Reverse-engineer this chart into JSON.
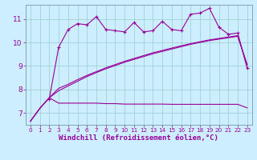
{
  "background_color": "#cceeff",
  "line_color": "#990099",
  "grid_color": "#99cccc",
  "xlabel": "Windchill (Refroidissement éolien,°C)",
  "xlabel_fontsize": 6.5,
  "tick_fontsize": 6.5,
  "xlim": [
    -0.5,
    23.5
  ],
  "ylim": [
    6.5,
    11.6
  ],
  "yticks": [
    7,
    8,
    9,
    10,
    11
  ],
  "xticks": [
    0,
    1,
    2,
    3,
    4,
    5,
    6,
    7,
    8,
    9,
    10,
    11,
    12,
    13,
    14,
    15,
    16,
    17,
    18,
    19,
    20,
    21,
    22,
    23
  ],
  "line_wavy_x": [
    2,
    3,
    4,
    5,
    6,
    7,
    8,
    9,
    10,
    11,
    12,
    13,
    14,
    15,
    16,
    17,
    18,
    19,
    20,
    21,
    22,
    23
  ],
  "line_wavy_y": [
    7.6,
    9.8,
    10.55,
    10.8,
    10.75,
    11.1,
    10.55,
    10.5,
    10.45,
    10.85,
    10.45,
    10.5,
    10.9,
    10.55,
    10.5,
    11.2,
    11.25,
    11.45,
    10.65,
    10.35,
    10.4,
    8.9
  ],
  "line_diag1_x": [
    0,
    1,
    2,
    3,
    4,
    5,
    6,
    7,
    8,
    9,
    10,
    11,
    12,
    13,
    14,
    15,
    16,
    17,
    18,
    19,
    20,
    21,
    22,
    23
  ],
  "line_diag1_y": [
    6.65,
    7.2,
    7.65,
    7.95,
    8.15,
    8.35,
    8.55,
    8.72,
    8.88,
    9.02,
    9.16,
    9.28,
    9.4,
    9.52,
    9.62,
    9.72,
    9.82,
    9.92,
    10.0,
    10.08,
    10.14,
    10.2,
    10.26,
    9.05
  ],
  "line_diag2_x": [
    0,
    1,
    2,
    3,
    4,
    5,
    6,
    7,
    8,
    9,
    10,
    11,
    12,
    13,
    14,
    15,
    16,
    17,
    18,
    19,
    20,
    21,
    22,
    23
  ],
  "line_diag2_y": [
    6.65,
    7.2,
    7.65,
    8.05,
    8.22,
    8.42,
    8.6,
    8.76,
    8.92,
    9.06,
    9.2,
    9.32,
    9.44,
    9.56,
    9.66,
    9.76,
    9.86,
    9.95,
    10.03,
    10.11,
    10.17,
    10.23,
    10.29,
    9.05
  ],
  "line_flat_x": [
    0,
    1,
    2,
    3,
    4,
    5,
    6,
    7,
    8,
    9,
    10,
    11,
    12,
    13,
    14,
    15,
    16,
    17,
    18,
    19,
    20,
    21,
    22,
    23
  ],
  "line_flat_y": [
    6.65,
    7.2,
    7.65,
    7.42,
    7.42,
    7.42,
    7.42,
    7.42,
    7.4,
    7.4,
    7.38,
    7.38,
    7.38,
    7.38,
    7.38,
    7.37,
    7.37,
    7.37,
    7.37,
    7.37,
    7.37,
    7.37,
    7.37,
    7.22
  ]
}
